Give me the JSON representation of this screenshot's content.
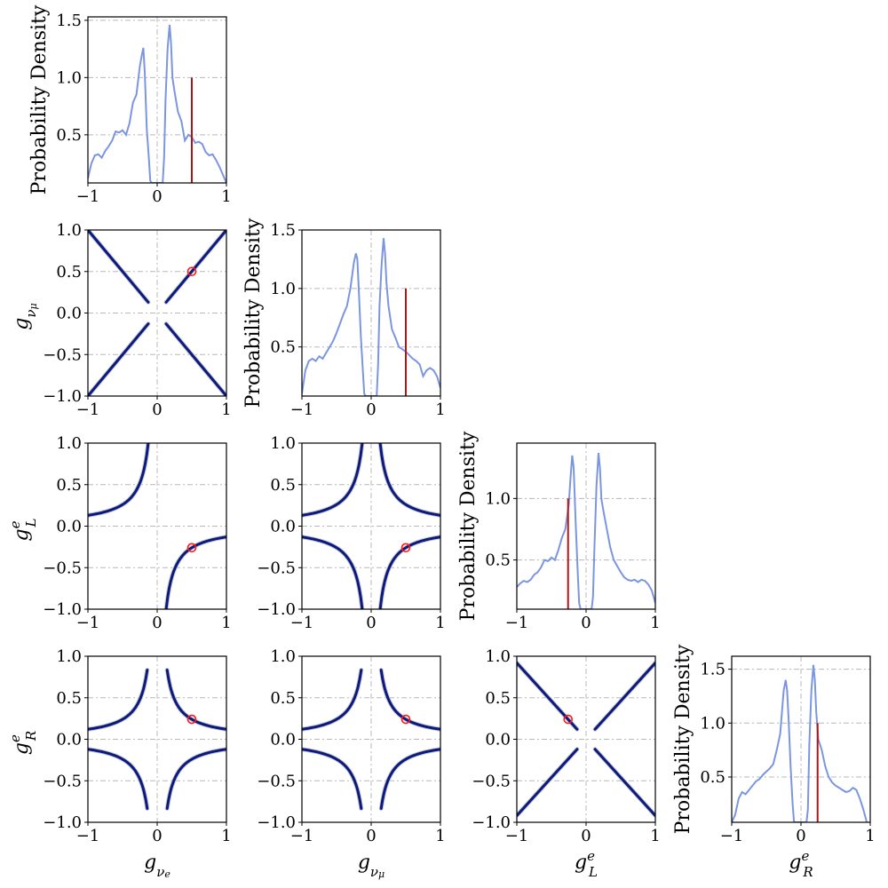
{
  "chart_data": {
    "type": "corner",
    "parameters": [
      {
        "key": "gnue",
        "label": "g_{ν_e}"
      },
      {
        "key": "gnumu",
        "label": "g_{ν_μ}"
      },
      {
        "key": "gLe",
        "label": "g^e_L"
      },
      {
        "key": "gRe",
        "label": "g^e_R"
      }
    ],
    "truth": {
      "gnue": 0.5,
      "gnumu": 0.5,
      "gLe": -0.26,
      "gRe": 0.24
    },
    "diag_ylabel": "Probability Density",
    "x_ticks": [
      "−1",
      "0",
      "1"
    ],
    "y_ticks_2d": [
      "−1.0",
      "−0.5",
      "0.0",
      "0.5",
      "1.0"
    ],
    "xlim": [
      -1,
      1
    ],
    "ylim_2d": [
      -1,
      1
    ],
    "diagonal": [
      {
        "param": "gnue",
        "ylim": [
          0.08,
          1.53
        ],
        "yticks": [
          0.5,
          1.0,
          1.5
        ],
        "ytick_labels": [
          "0.5",
          "1.0",
          "1.5"
        ],
        "truth_height": 1.0,
        "x": [
          -1.0,
          -0.95,
          -0.9,
          -0.85,
          -0.8,
          -0.75,
          -0.7,
          -0.65,
          -0.6,
          -0.55,
          -0.5,
          -0.45,
          -0.4,
          -0.35,
          -0.3,
          -0.25,
          -0.22,
          -0.2,
          -0.18,
          -0.15,
          -0.12,
          -0.1,
          -0.08,
          0.08,
          0.1,
          0.12,
          0.15,
          0.18,
          0.2,
          0.22,
          0.25,
          0.3,
          0.35,
          0.4,
          0.45,
          0.5,
          0.55,
          0.6,
          0.65,
          0.7,
          0.75,
          0.8,
          0.85,
          0.9,
          0.95,
          1.0
        ],
        "density": [
          0.12,
          0.25,
          0.32,
          0.33,
          0.3,
          0.36,
          0.4,
          0.45,
          0.53,
          0.52,
          0.54,
          0.5,
          0.6,
          0.78,
          0.85,
          1.1,
          1.2,
          1.26,
          1.05,
          0.55,
          0.3,
          0.1,
          0.08,
          0.08,
          0.3,
          0.8,
          1.25,
          1.46,
          1.3,
          1.0,
          0.88,
          0.7,
          0.62,
          0.45,
          0.5,
          0.48,
          0.43,
          0.44,
          0.42,
          0.35,
          0.32,
          0.33,
          0.28,
          0.22,
          0.15,
          0.08
        ]
      },
      {
        "param": "gnumu",
        "ylim": [
          0.08,
          1.5
        ],
        "yticks": [
          0.5,
          1.0,
          1.5
        ],
        "ytick_labels": [
          "0.5",
          "1.0",
          "1.5"
        ],
        "truth_height": 1.0,
        "x": [
          -1.0,
          -0.95,
          -0.9,
          -0.85,
          -0.8,
          -0.75,
          -0.7,
          -0.65,
          -0.6,
          -0.55,
          -0.5,
          -0.45,
          -0.4,
          -0.35,
          -0.3,
          -0.25,
          -0.22,
          -0.2,
          -0.18,
          -0.15,
          -0.12,
          -0.1,
          -0.08,
          0.08,
          0.1,
          0.12,
          0.15,
          0.18,
          0.2,
          0.22,
          0.25,
          0.3,
          0.35,
          0.4,
          0.45,
          0.5,
          0.55,
          0.6,
          0.65,
          0.7,
          0.75,
          0.8,
          0.85,
          0.9,
          0.95,
          1.0
        ],
        "density": [
          0.1,
          0.3,
          0.38,
          0.4,
          0.38,
          0.42,
          0.4,
          0.45,
          0.5,
          0.55,
          0.62,
          0.7,
          0.78,
          0.85,
          1.0,
          1.22,
          1.3,
          1.25,
          1.0,
          0.6,
          0.3,
          0.1,
          0.08,
          0.08,
          0.35,
          0.85,
          1.2,
          1.43,
          1.3,
          1.05,
          0.85,
          0.65,
          0.58,
          0.5,
          0.48,
          0.46,
          0.43,
          0.4,
          0.38,
          0.35,
          0.25,
          0.3,
          0.32,
          0.3,
          0.25,
          0.15
        ]
      },
      {
        "param": "gLe",
        "ylim": [
          0.1,
          1.45
        ],
        "yticks": [
          0.5,
          1.0
        ],
        "ytick_labels": [
          "0.5",
          "1.0"
        ],
        "truth_height": 1.0,
        "x": [
          -1.0,
          -0.95,
          -0.9,
          -0.85,
          -0.8,
          -0.75,
          -0.7,
          -0.65,
          -0.6,
          -0.55,
          -0.5,
          -0.45,
          -0.4,
          -0.35,
          -0.3,
          -0.25,
          -0.22,
          -0.2,
          -0.18,
          -0.15,
          -0.12,
          -0.1,
          -0.08,
          0.08,
          0.1,
          0.12,
          0.15,
          0.18,
          0.2,
          0.22,
          0.25,
          0.3,
          0.35,
          0.4,
          0.45,
          0.5,
          0.55,
          0.6,
          0.65,
          0.7,
          0.75,
          0.8,
          0.85,
          0.9,
          0.95,
          1.0
        ],
        "density": [
          0.28,
          0.31,
          0.33,
          0.32,
          0.34,
          0.38,
          0.4,
          0.44,
          0.5,
          0.49,
          0.52,
          0.5,
          0.58,
          0.68,
          0.75,
          0.95,
          1.2,
          1.35,
          1.25,
          0.8,
          0.4,
          0.15,
          0.1,
          0.1,
          0.2,
          0.6,
          1.1,
          1.37,
          1.25,
          1.0,
          0.9,
          0.75,
          0.6,
          0.5,
          0.45,
          0.4,
          0.36,
          0.34,
          0.33,
          0.34,
          0.32,
          0.34,
          0.33,
          0.3,
          0.25,
          0.15
        ]
      },
      {
        "param": "gRe",
        "ylim": [
          0.08,
          1.62
        ],
        "yticks": [
          0.5,
          1.0,
          1.5
        ],
        "ytick_labels": [
          "0.5",
          "1.0",
          "1.5"
        ],
        "truth_height": 1.0,
        "x": [
          -1.0,
          -0.95,
          -0.9,
          -0.85,
          -0.8,
          -0.75,
          -0.7,
          -0.65,
          -0.6,
          -0.55,
          -0.5,
          -0.45,
          -0.4,
          -0.35,
          -0.3,
          -0.25,
          -0.22,
          -0.2,
          -0.18,
          -0.15,
          -0.12,
          -0.1,
          -0.08,
          0.08,
          0.1,
          0.12,
          0.15,
          0.18,
          0.2,
          0.22,
          0.25,
          0.3,
          0.35,
          0.4,
          0.45,
          0.5,
          0.55,
          0.6,
          0.65,
          0.7,
          0.75,
          0.8,
          0.85,
          0.9,
          0.95,
          1.0
        ],
        "density": [
          0.08,
          0.15,
          0.3,
          0.36,
          0.34,
          0.38,
          0.42,
          0.46,
          0.48,
          0.52,
          0.55,
          0.58,
          0.62,
          0.75,
          0.9,
          1.3,
          1.4,
          1.3,
          1.05,
          0.6,
          0.25,
          0.08,
          0.08,
          0.08,
          0.2,
          0.8,
          1.3,
          1.54,
          1.4,
          1.1,
          0.85,
          0.75,
          0.6,
          0.5,
          0.45,
          0.42,
          0.4,
          0.38,
          0.36,
          0.37,
          0.4,
          0.38,
          0.3,
          0.2,
          0.08,
          0.05
        ]
      }
    ],
    "off_diagonal": [
      {
        "x": "gnue",
        "y": "gnumu",
        "relation": "|y| = |x|, |x| > 0.12"
      },
      {
        "x": "gnue",
        "y": "gLe",
        "relation": "x·y = -0.13, |y| ≤ 1"
      },
      {
        "x": "gnumu",
        "y": "gLe",
        "relation": "|x·y| = 0.13, |y| ≤ 1"
      },
      {
        "x": "gnue",
        "y": "gRe",
        "relation": "|x·y| = 0.12, |y| ≤ 0.9"
      },
      {
        "x": "gnumu",
        "y": "gRe",
        "relation": "|x·y| = 0.12, |y| ≤ 0.9"
      },
      {
        "x": "gLe",
        "y": "gRe",
        "relation": "|y| = 0.92·|x|, |x| > 0.13"
      }
    ],
    "grid": true,
    "colors": {
      "kde": "#7b96e0",
      "truth": "#b01515",
      "posterior": "#0b1a80",
      "spread": "#c8c8c8",
      "marker": "#ff1a1a"
    }
  }
}
